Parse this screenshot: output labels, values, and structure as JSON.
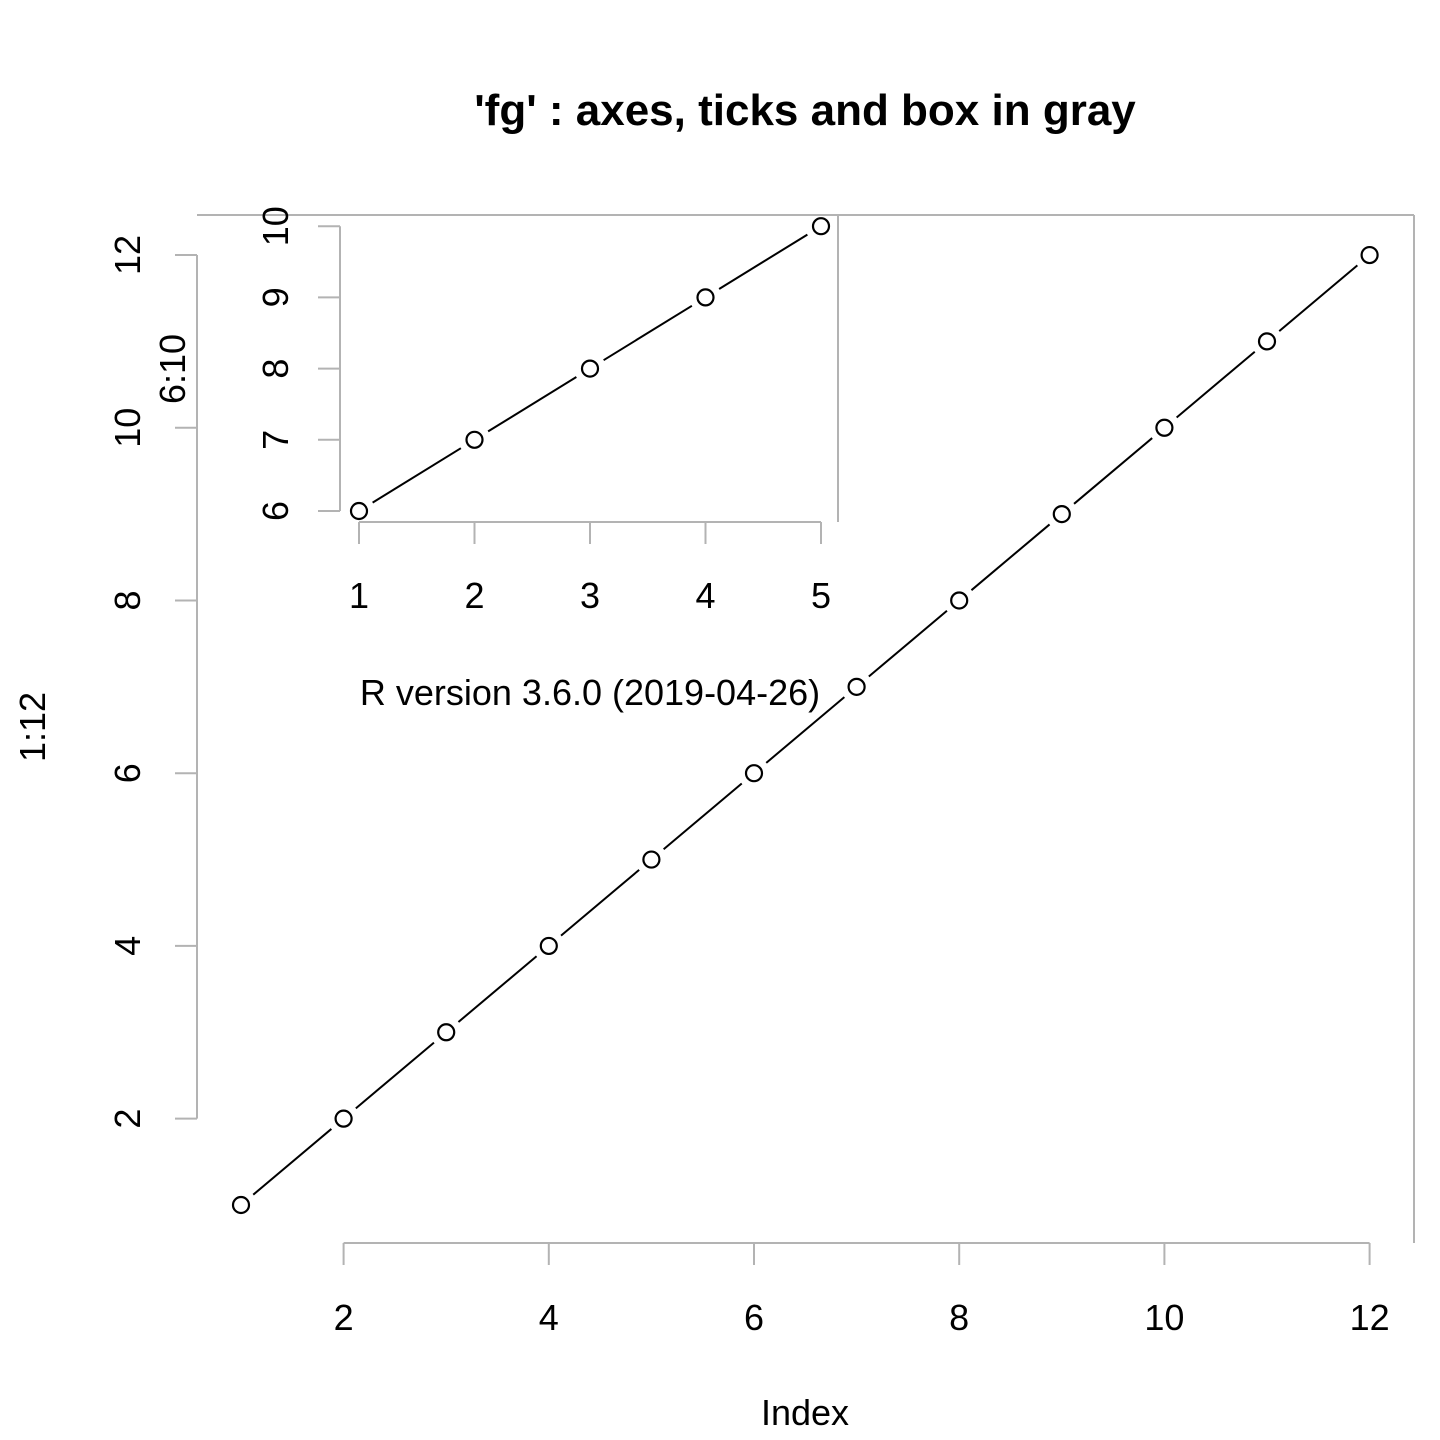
{
  "chart_data": [
    {
      "type": "line",
      "title": "'fg' : axes, ticks and box in gray",
      "xlabel": "Index",
      "ylabel": "1:12",
      "x": [
        1,
        2,
        3,
        4,
        5,
        6,
        7,
        8,
        9,
        10,
        11,
        12
      ],
      "y": [
        1,
        2,
        3,
        4,
        5,
        6,
        7,
        8,
        9,
        10,
        11,
        12
      ],
      "xlim": [
        1,
        12
      ],
      "ylim": [
        1,
        12
      ],
      "x_ticks": [
        "2",
        "4",
        "6",
        "8",
        "10",
        "12"
      ],
      "y_ticks": [
        "2",
        "4",
        "6",
        "8",
        "10",
        "12"
      ],
      "marker": "open-circle",
      "axis_color": "#b3b3b3",
      "line_color": "#000000",
      "grid": false
    },
    {
      "type": "line",
      "xlabel": "",
      "ylabel": "6:10",
      "x": [
        1,
        2,
        3,
        4,
        5
      ],
      "y": [
        6,
        7,
        8,
        9,
        10
      ],
      "xlim": [
        1,
        5
      ],
      "ylim": [
        6,
        10
      ],
      "x_ticks": [
        "1",
        "2",
        "3",
        "4",
        "5"
      ],
      "y_ticks": [
        "6",
        "7",
        "8",
        "9",
        "10"
      ],
      "marker": "open-circle",
      "axis_color": "#b3b3b3",
      "line_color": "#000000",
      "grid": false
    }
  ],
  "annotation": "R version 3.6.0 (2019-04-26)"
}
